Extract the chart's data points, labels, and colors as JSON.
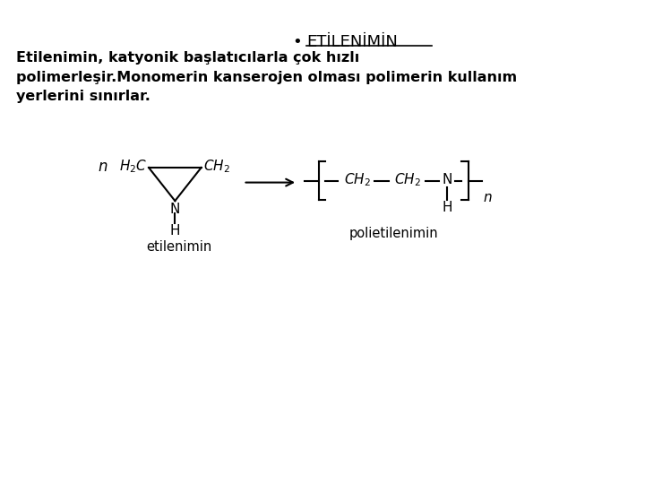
{
  "title": "ETİLENİMİN",
  "bullet": "•",
  "paragraph": "Etilenimin, katyonik başlatıcılarla çok hızlı\npolimerleşir.Monomerin kanserojen olması polimerin kullanım\nyerlerini sınırlar.",
  "label_left": "etilenimin",
  "label_right": "polietilenimin",
  "background": "#ffffff",
  "text_color": "#000000",
  "fig_width": 7.2,
  "fig_height": 5.4,
  "dpi": 100
}
